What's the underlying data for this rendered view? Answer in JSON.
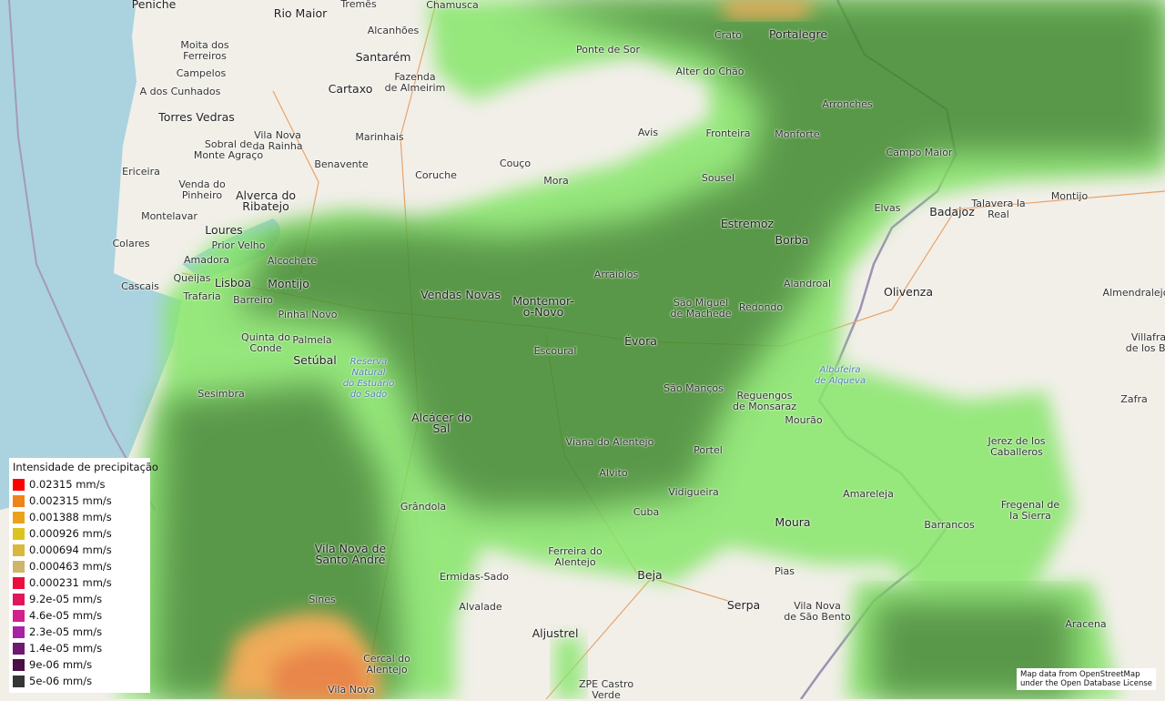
{
  "map": {
    "colors": {
      "sea": "#aad3df",
      "land": "#f2efe9",
      "precip_dark": "#3f8a2e",
      "precip_light": "#86e66a",
      "precip_orange": "#e8732e"
    },
    "places": [
      "Peniche",
      "Rio Maior",
      "Tremês",
      "Chamusca",
      "Crato",
      "Portalegre",
      "Alcanhões",
      "Moita dos\nFerreiros",
      "Santarém",
      "Ponte de Sor",
      "Alter do Chão",
      "Campelos",
      "Fazenda\nde Almeirim",
      "A dos Cunhados",
      "Cartaxo",
      "Torres Vedras",
      "Vila Nova\nda Rainha",
      "Marinhais",
      "Avis",
      "Arronches",
      "Sobral de\nMonte Agraço",
      "Fronteira",
      "Monforte",
      "Benavente",
      "Coruche",
      "Couço",
      "Campo Maior",
      "Ericeira",
      "Venda do\nPinheiro",
      "Alverca do\nRibatejo",
      "Mora",
      "Sousel",
      "Montelavar",
      "Badajoz",
      "Talavera la\nReal",
      "Montijo",
      "Loures",
      "Estremoz",
      "Elvas",
      "Colares",
      "Prior Velho",
      "Borba",
      "Amadora",
      "Alcochete",
      "Cascais",
      "Queijas",
      "Lisboa",
      "Montijo",
      "Arraiolos",
      "Alandroal",
      "Olivenza",
      "Almendralejo",
      "Barreiro",
      "Trafaria",
      "Vendas Novas",
      "Montemor-\no-Novo",
      "São Miguel\nde Machede",
      "Redondo",
      "Pinhal Novo",
      "Quinta do\nConde",
      "Palmela",
      "Escoural",
      "Évora",
      "Villafra\nde los Ba",
      "Setúbal",
      "Sesimbra",
      "Albufeira\nde Alqueva",
      "São Manços",
      "Reguengos\nde Monsaraz",
      "Zafra",
      "Mourão",
      "Jerez de los\nCaballeros",
      "Alcácer do\nSal",
      "Viana do Alentejo",
      "Portel",
      "Alvito",
      "Amareleja",
      "Vidigueira",
      "Grândola",
      "Fregenal de\nla Sierra",
      "Cuba",
      "Moura",
      "Barrancos",
      "Vila Nova de\nSanto André",
      "Ferreira do\nAlentejo",
      "Beja",
      "Pias",
      "Ermidas-Sado",
      "Sines",
      "Serpa",
      "Vila Nova\nde São Bento",
      "Alvalade",
      "Aljustrel",
      "Aracena",
      "Cercal do\nAlentejo",
      "ZPE Castro\nVerde",
      "Vila Nova",
      "Reserva\nNatural\ndo Estuário\ndo Sado"
    ]
  },
  "legend": {
    "title": "Intensidade de precipitação",
    "items": [
      {
        "label": "0.02315 mm/s",
        "color": "#ff0000"
      },
      {
        "label": "0.002315 mm/s",
        "color": "#f08418"
      },
      {
        "label": "0.001388 mm/s",
        "color": "#eba21a"
      },
      {
        "label": "0.000926 mm/s",
        "color": "#dcc41f"
      },
      {
        "label": "0.000694 mm/s",
        "color": "#d9b83e"
      },
      {
        "label": "0.000463 mm/s",
        "color": "#cdb56c"
      },
      {
        "label": "0.000231 mm/s",
        "color": "#ec0f3c"
      },
      {
        "label": "9.2e-05 mm/s",
        "color": "#e0175c"
      },
      {
        "label": "4.6e-05 mm/s",
        "color": "#d3208a"
      },
      {
        "label": "2.3e-05 mm/s",
        "color": "#a822a8"
      },
      {
        "label": "1.4e-05 mm/s",
        "color": "#6e1a72"
      },
      {
        "label": "9e-06 mm/s",
        "color": "#4a0f44"
      },
      {
        "label": "5e-06 mm/s",
        "color": "#363636"
      }
    ]
  },
  "attribution": {
    "line1": "Map data from OpenStreetMap",
    "line2": "under the Open Database License"
  }
}
